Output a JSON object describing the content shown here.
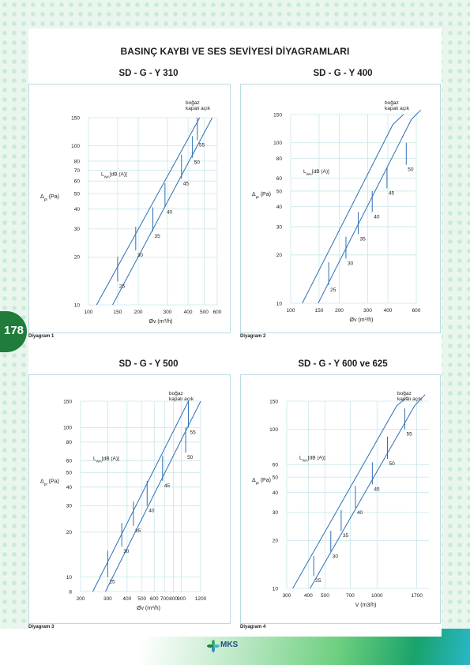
{
  "page": {
    "title": "BASINÇ KAYBI VE SES SEVİYESİ DİYAGRAMLARI",
    "page_number": "178",
    "logo_text": "MKS"
  },
  "chart_data": [
    {
      "type": "line",
      "heading": "SD - G - Y  310",
      "caption": "Diyagram 1",
      "x_label_parts": [
        "Øv (m",
        "3",
        "/h)"
      ],
      "y_label_parts": [
        "Δ",
        "pt",
        " (Pa)"
      ],
      "lwa_label_parts": [
        "L",
        "WA",
        "[dB (A)]"
      ],
      "state_label": [
        "boğaz",
        "kapalı açık"
      ],
      "x_scale": "log",
      "y_scale": "log",
      "xlim": [
        100,
        600
      ],
      "ylim": [
        10,
        150
      ],
      "x_ticks": [
        100,
        150,
        200,
        300,
        400,
        500,
        600
      ],
      "y_ticks": [
        10,
        20,
        30,
        40,
        50,
        60,
        70,
        80,
        100,
        150
      ],
      "series": [
        {
          "name": "boğaz kapalı",
          "x": [
            112,
            470
          ],
          "y": [
            10,
            150
          ]
        },
        {
          "name": "boğaz açık",
          "x": [
            140,
            560
          ],
          "y": [
            10,
            150
          ]
        }
      ],
      "sound_levels": [
        {
          "label": "25",
          "x": 150,
          "y_low": 14,
          "y_high": 20
        },
        {
          "label": "30",
          "x": 193,
          "y_low": 22,
          "y_high": 31
        },
        {
          "label": "35",
          "x": 245,
          "y_low": 29,
          "y_high": 41
        },
        {
          "label": "40",
          "x": 290,
          "y_low": 41,
          "y_high": 58
        },
        {
          "label": "45",
          "x": 365,
          "y_low": 62,
          "y_high": 88
        },
        {
          "label": "50",
          "x": 425,
          "y_low": 84,
          "y_high": 115
        },
        {
          "label": "55",
          "x": 455,
          "y_low": 108,
          "y_high": 150
        }
      ]
    },
    {
      "type": "line",
      "heading": "SD - G - Y 400",
      "caption": "Diyagram 2",
      "x_label_parts": [
        "Øv (m",
        "3",
        "/h)"
      ],
      "y_label_parts": [
        "Δ",
        "pt",
        " (Pa)"
      ],
      "lwa_label_parts": [
        "L",
        "WA",
        "[dB (A)]"
      ],
      "state_label": [
        "boğaz",
        "kapalı açık"
      ],
      "x_scale": "log",
      "y_scale": "log",
      "xlim": [
        100,
        600
      ],
      "ylim": [
        10,
        150
      ],
      "x_ticks": [
        100,
        150,
        200,
        300,
        400,
        600
      ],
      "y_ticks": [
        10,
        20,
        30,
        40,
        50,
        60,
        80,
        100,
        150
      ],
      "series": [
        {
          "name": "boğaz kapalı",
          "x": [
            118,
            430,
            500
          ],
          "y": [
            10,
            130,
            150
          ]
        },
        {
          "name": "boğaz açık",
          "x": [
            148,
            560,
            640
          ],
          "y": [
            10,
            140,
            160
          ]
        }
      ],
      "sound_levels": [
        {
          "label": "25",
          "x": 172,
          "y_low": 13,
          "y_high": 18
        },
        {
          "label": "30",
          "x": 220,
          "y_low": 19,
          "y_high": 26
        },
        {
          "label": "35",
          "x": 262,
          "y_low": 27,
          "y_high": 37
        },
        {
          "label": "40",
          "x": 320,
          "y_low": 37,
          "y_high": 50
        },
        {
          "label": "45",
          "x": 395,
          "y_low": 52,
          "y_high": 70
        },
        {
          "label": "50",
          "x": 520,
          "y_low": 73,
          "y_high": 100
        }
      ]
    },
    {
      "type": "line",
      "heading": "SD - G - Y 500",
      "caption": "Diyagram 3",
      "x_label_parts": [
        "Øv (m",
        "3",
        "/h)"
      ],
      "y_label_parts": [
        "Δ",
        "pt",
        " (Pa)"
      ],
      "lwa_label_parts": [
        "L",
        "WA",
        "[dB (A)]"
      ],
      "state_label": [
        "boğaz",
        "kapalı açık"
      ],
      "x_scale": "log",
      "y_scale": "log",
      "xlim": [
        200,
        1200
      ],
      "ylim": [
        8,
        150
      ],
      "x_ticks": [
        200,
        300,
        400,
        500,
        600,
        700,
        800,
        900,
        1200
      ],
      "y_ticks": [
        8,
        10,
        20,
        30,
        40,
        50,
        60,
        80,
        100,
        150
      ],
      "series": [
        {
          "name": "boğaz kapalı",
          "x": [
            240,
            1000
          ],
          "y": [
            8,
            150
          ]
        },
        {
          "name": "boğaz açık",
          "x": [
            290,
            1200
          ],
          "y": [
            8,
            150
          ]
        }
      ],
      "sound_levels": [
        {
          "label": "25",
          "x": 300,
          "y_low": 10,
          "y_high": 15
        },
        {
          "label": "30",
          "x": 370,
          "y_low": 16,
          "y_high": 23
        },
        {
          "label": "35",
          "x": 440,
          "y_low": 22,
          "y_high": 32
        },
        {
          "label": "40",
          "x": 540,
          "y_low": 30,
          "y_high": 44
        },
        {
          "label": "45",
          "x": 680,
          "y_low": 44,
          "y_high": 65
        },
        {
          "label": "50",
          "x": 960,
          "y_low": 68,
          "y_high": 100
        },
        {
          "label": "55",
          "x": 1000,
          "y_low": 100,
          "y_high": 150
        }
      ]
    },
    {
      "type": "line",
      "heading": "SD - G - Y 600 ve 625",
      "caption": "Diyagram 4",
      "x_label_parts": [
        "V (m3/h)"
      ],
      "y_label_parts": [
        "Δ",
        "pt",
        " (Pa)"
      ],
      "lwa_label_parts": [
        "L",
        "WA",
        "[dB (A)]"
      ],
      "state_label": [
        "boğaz",
        "kapalı açık"
      ],
      "x_scale": "log",
      "y_scale": "log",
      "xlim": [
        300,
        2000
      ],
      "ylim": [
        10,
        150
      ],
      "x_ticks": [
        300,
        400,
        500,
        700,
        1000,
        1700
      ],
      "y_ticks": [
        10,
        20,
        30,
        40,
        50,
        60,
        100,
        150
      ],
      "series": [
        {
          "name": "boğaz kapalı",
          "x": [
            325,
            1300,
            1500
          ],
          "y": [
            10,
            140,
            160
          ]
        },
        {
          "name": "boğaz açık",
          "x": [
            410,
            1650,
            1900
          ],
          "y": [
            10,
            140,
            165
          ]
        }
      ],
      "sound_levels": [
        {
          "label": "25",
          "x": 430,
          "y_low": 12,
          "y_high": 16
        },
        {
          "label": "30",
          "x": 540,
          "y_low": 17,
          "y_high": 23
        },
        {
          "label": "35",
          "x": 620,
          "y_low": 23,
          "y_high": 31
        },
        {
          "label": "40",
          "x": 750,
          "y_low": 32,
          "y_high": 44
        },
        {
          "label": "45",
          "x": 940,
          "y_low": 45,
          "y_high": 62
        },
        {
          "label": "50",
          "x": 1150,
          "y_low": 65,
          "y_high": 90
        },
        {
          "label": "55",
          "x": 1450,
          "y_low": 100,
          "y_high": 135
        }
      ]
    }
  ]
}
